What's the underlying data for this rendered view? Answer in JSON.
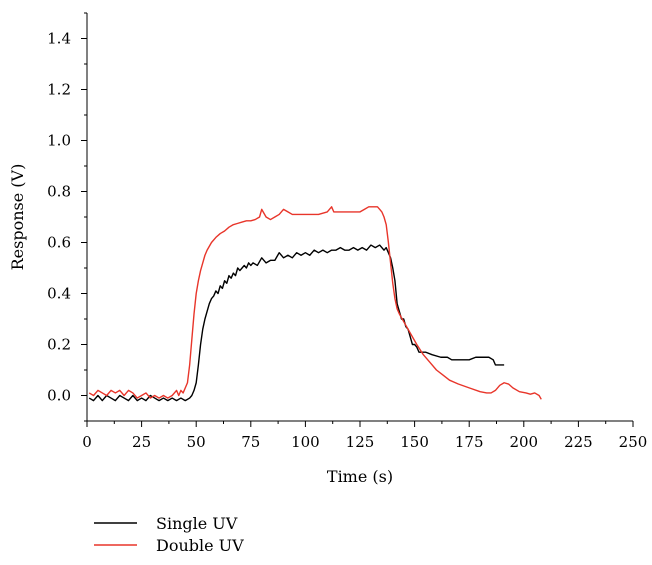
{
  "chart_data": {
    "type": "line",
    "xlabel": "Time (s)",
    "ylabel": "Response (V)",
    "xlim": [
      0,
      250
    ],
    "ylim": [
      -0.1,
      1.5
    ],
    "x_ticks": [
      0,
      25,
      50,
      75,
      100,
      125,
      150,
      175,
      200,
      225,
      250
    ],
    "x_tick_labels": [
      "0",
      "25",
      "50",
      "75",
      "100",
      "125",
      "150",
      "175",
      "200",
      "225",
      "250"
    ],
    "y_ticks": [
      0.0,
      0.2,
      0.4,
      0.6,
      0.8,
      1.0,
      1.2,
      1.4
    ],
    "y_tick_labels": [
      "0.0",
      "0.2",
      "0.4",
      "0.6",
      "0.8",
      "1.0",
      "1.2",
      "1.4"
    ],
    "grid": false,
    "legend_position": "bottom-left, below plot",
    "series": [
      {
        "name": "Single UV",
        "color": "#000000",
        "points": [
          [
            1,
            -0.01
          ],
          [
            3,
            -0.02
          ],
          [
            5,
            0.0
          ],
          [
            7,
            -0.02
          ],
          [
            9,
            0.0
          ],
          [
            11,
            -0.01
          ],
          [
            13,
            -0.02
          ],
          [
            15,
            0.0
          ],
          [
            17,
            -0.01
          ],
          [
            19,
            -0.02
          ],
          [
            21,
            0.0
          ],
          [
            23,
            -0.02
          ],
          [
            25,
            -0.01
          ],
          [
            27,
            -0.02
          ],
          [
            29,
            0.0
          ],
          [
            31,
            -0.01
          ],
          [
            33,
            -0.02
          ],
          [
            35,
            -0.01
          ],
          [
            37,
            -0.02
          ],
          [
            39,
            -0.01
          ],
          [
            41,
            -0.02
          ],
          [
            43,
            -0.01
          ],
          [
            45,
            -0.02
          ],
          [
            47,
            -0.01
          ],
          [
            48,
            0.0
          ],
          [
            49,
            0.02
          ],
          [
            50,
            0.05
          ],
          [
            51,
            0.12
          ],
          [
            52,
            0.2
          ],
          [
            53,
            0.26
          ],
          [
            54,
            0.3
          ],
          [
            55,
            0.33
          ],
          [
            56,
            0.36
          ],
          [
            57,
            0.38
          ],
          [
            58,
            0.39
          ],
          [
            59,
            0.41
          ],
          [
            60,
            0.4
          ],
          [
            61,
            0.43
          ],
          [
            62,
            0.42
          ],
          [
            63,
            0.45
          ],
          [
            64,
            0.44
          ],
          [
            65,
            0.47
          ],
          [
            66,
            0.46
          ],
          [
            67,
            0.48
          ],
          [
            68,
            0.47
          ],
          [
            69,
            0.5
          ],
          [
            70,
            0.49
          ],
          [
            71,
            0.5
          ],
          [
            72,
            0.51
          ],
          [
            73,
            0.5
          ],
          [
            74,
            0.52
          ],
          [
            75,
            0.51
          ],
          [
            76,
            0.52
          ],
          [
            78,
            0.51
          ],
          [
            80,
            0.54
          ],
          [
            82,
            0.52
          ],
          [
            84,
            0.53
          ],
          [
            86,
            0.53
          ],
          [
            88,
            0.56
          ],
          [
            90,
            0.54
          ],
          [
            92,
            0.55
          ],
          [
            94,
            0.54
          ],
          [
            96,
            0.56
          ],
          [
            98,
            0.55
          ],
          [
            100,
            0.56
          ],
          [
            102,
            0.55
          ],
          [
            104,
            0.57
          ],
          [
            106,
            0.56
          ],
          [
            108,
            0.57
          ],
          [
            110,
            0.56
          ],
          [
            112,
            0.57
          ],
          [
            114,
            0.57
          ],
          [
            116,
            0.58
          ],
          [
            118,
            0.57
          ],
          [
            120,
            0.57
          ],
          [
            122,
            0.58
          ],
          [
            124,
            0.57
          ],
          [
            126,
            0.58
          ],
          [
            128,
            0.57
          ],
          [
            130,
            0.59
          ],
          [
            132,
            0.58
          ],
          [
            134,
            0.59
          ],
          [
            136,
            0.57
          ],
          [
            137,
            0.58
          ],
          [
            138,
            0.56
          ],
          [
            139,
            0.54
          ],
          [
            140,
            0.5
          ],
          [
            141,
            0.45
          ],
          [
            142,
            0.36
          ],
          [
            143,
            0.33
          ],
          [
            144,
            0.3
          ],
          [
            145,
            0.3
          ],
          [
            146,
            0.27
          ],
          [
            147,
            0.26
          ],
          [
            148,
            0.23
          ],
          [
            149,
            0.2
          ],
          [
            150,
            0.2
          ],
          [
            151,
            0.19
          ],
          [
            152,
            0.17
          ],
          [
            155,
            0.17
          ],
          [
            158,
            0.16
          ],
          [
            162,
            0.15
          ],
          [
            165,
            0.15
          ],
          [
            167,
            0.14
          ],
          [
            170,
            0.14
          ],
          [
            175,
            0.14
          ],
          [
            178,
            0.15
          ],
          [
            182,
            0.15
          ],
          [
            184,
            0.15
          ],
          [
            186,
            0.14
          ],
          [
            187,
            0.12
          ],
          [
            189,
            0.12
          ],
          [
            191,
            0.12
          ]
        ]
      },
      {
        "name": "Double UV",
        "color": "#e8352a",
        "points": [
          [
            1,
            0.01
          ],
          [
            3,
            0.0
          ],
          [
            5,
            0.02
          ],
          [
            7,
            0.01
          ],
          [
            9,
            0.0
          ],
          [
            11,
            0.02
          ],
          [
            13,
            0.01
          ],
          [
            15,
            0.02
          ],
          [
            17,
            0.0
          ],
          [
            19,
            0.02
          ],
          [
            21,
            0.01
          ],
          [
            23,
            -0.01
          ],
          [
            25,
            0.0
          ],
          [
            27,
            0.01
          ],
          [
            29,
            -0.01
          ],
          [
            31,
            0.0
          ],
          [
            33,
            -0.01
          ],
          [
            35,
            0.0
          ],
          [
            37,
            -0.01
          ],
          [
            39,
            0.0
          ],
          [
            41,
            0.02
          ],
          [
            42,
            0.0
          ],
          [
            43,
            0.02
          ],
          [
            44,
            0.01
          ],
          [
            45,
            0.03
          ],
          [
            46,
            0.05
          ],
          [
            47,
            0.12
          ],
          [
            48,
            0.22
          ],
          [
            49,
            0.32
          ],
          [
            50,
            0.4
          ],
          [
            51,
            0.45
          ],
          [
            52,
            0.49
          ],
          [
            53,
            0.52
          ],
          [
            54,
            0.55
          ],
          [
            55,
            0.57
          ],
          [
            57,
            0.6
          ],
          [
            59,
            0.62
          ],
          [
            61,
            0.635
          ],
          [
            63,
            0.645
          ],
          [
            65,
            0.66
          ],
          [
            67,
            0.67
          ],
          [
            69,
            0.675
          ],
          [
            71,
            0.68
          ],
          [
            73,
            0.685
          ],
          [
            75,
            0.685
          ],
          [
            77,
            0.69
          ],
          [
            79,
            0.7
          ],
          [
            80,
            0.73
          ],
          [
            82,
            0.7
          ],
          [
            84,
            0.69
          ],
          [
            86,
            0.7
          ],
          [
            88,
            0.71
          ],
          [
            90,
            0.73
          ],
          [
            92,
            0.72
          ],
          [
            94,
            0.71
          ],
          [
            96,
            0.71
          ],
          [
            98,
            0.71
          ],
          [
            100,
            0.71
          ],
          [
            102,
            0.71
          ],
          [
            104,
            0.71
          ],
          [
            106,
            0.71
          ],
          [
            108,
            0.715
          ],
          [
            110,
            0.72
          ],
          [
            112,
            0.74
          ],
          [
            113,
            0.72
          ],
          [
            115,
            0.72
          ],
          [
            120,
            0.72
          ],
          [
            125,
            0.72
          ],
          [
            127,
            0.73
          ],
          [
            129,
            0.74
          ],
          [
            131,
            0.74
          ],
          [
            133,
            0.74
          ],
          [
            134,
            0.73
          ],
          [
            135,
            0.72
          ],
          [
            136,
            0.7
          ],
          [
            137,
            0.67
          ],
          [
            138,
            0.6
          ],
          [
            139,
            0.52
          ],
          [
            140,
            0.44
          ],
          [
            141,
            0.38
          ],
          [
            142,
            0.34
          ],
          [
            143,
            0.32
          ],
          [
            145,
            0.29
          ],
          [
            147,
            0.26
          ],
          [
            149,
            0.23
          ],
          [
            151,
            0.2
          ],
          [
            154,
            0.16
          ],
          [
            157,
            0.13
          ],
          [
            160,
            0.1
          ],
          [
            163,
            0.08
          ],
          [
            166,
            0.06
          ],
          [
            170,
            0.045
          ],
          [
            175,
            0.03
          ],
          [
            180,
            0.015
          ],
          [
            183,
            0.01
          ],
          [
            185,
            0.01
          ],
          [
            187,
            0.02
          ],
          [
            189,
            0.04
          ],
          [
            191,
            0.05
          ],
          [
            193,
            0.045
          ],
          [
            195,
            0.03
          ],
          [
            198,
            0.015
          ],
          [
            201,
            0.01
          ],
          [
            203,
            0.005
          ],
          [
            205,
            0.01
          ],
          [
            207,
            0.0
          ],
          [
            208,
            -0.015
          ]
        ]
      }
    ]
  }
}
